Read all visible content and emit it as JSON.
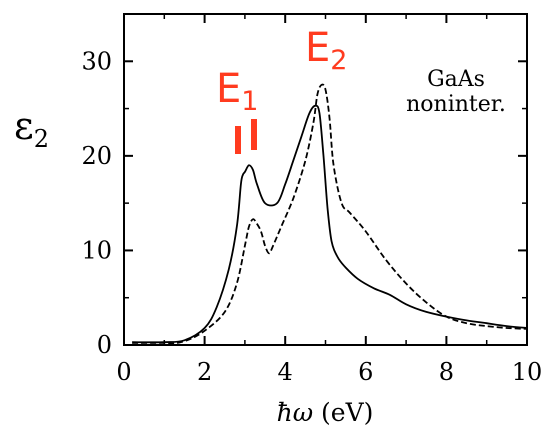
{
  "chart_data": {
    "type": "line",
    "xlabel_symbol": "ħω",
    "xlabel_unit": "(eV)",
    "ylabel_main": "ε",
    "ylabel_sub": "2",
    "xlim": [
      0,
      10
    ],
    "ylim": [
      0,
      35
    ],
    "xticks": [
      "0",
      "2",
      "4",
      "6",
      "8",
      "10"
    ],
    "yticks": [
      "0",
      "10",
      "20",
      "30"
    ],
    "grid": false,
    "annotations": {
      "e1_main": "E",
      "e1_sub": "1",
      "e2_main": "E",
      "e2_sub": "2",
      "material_line1": "GaAs",
      "material_line2": "noninter.",
      "color": "#ff3b1f"
    },
    "series": [
      {
        "style": "solid",
        "x": [
          0.2,
          1.0,
          1.5,
          2.0,
          2.3,
          2.6,
          2.8,
          2.9,
          2.95,
          3.0,
          3.1,
          3.2,
          3.3,
          3.5,
          3.8,
          4.0,
          4.2,
          4.4,
          4.6,
          4.75,
          4.85,
          4.95,
          5.05,
          5.15,
          5.3,
          5.5,
          5.8,
          6.2,
          6.6,
          7.0,
          7.5,
          8.0,
          8.5,
          9.0,
          9.5,
          10.0
        ],
        "y": [
          0.3,
          0.3,
          0.5,
          1.8,
          4.0,
          8.0,
          12.5,
          17.0,
          18.0,
          18.3,
          19.0,
          18.5,
          17.0,
          15.0,
          15.0,
          17.0,
          19.5,
          22.0,
          24.5,
          25.3,
          24.5,
          20.0,
          14.5,
          11.0,
          9.3,
          8.2,
          7.0,
          6.0,
          5.3,
          4.3,
          3.5,
          3.0,
          2.6,
          2.3,
          2.0,
          1.8
        ]
      },
      {
        "style": "dashed",
        "x": [
          0.2,
          1.0,
          1.5,
          2.0,
          2.5,
          2.8,
          3.0,
          3.1,
          3.2,
          3.3,
          3.4,
          3.5,
          3.6,
          3.7,
          3.9,
          4.2,
          4.5,
          4.7,
          4.8,
          4.9,
          5.0,
          5.1,
          5.2,
          5.4,
          5.6,
          6.0,
          6.5,
          7.0,
          7.5,
          8.0,
          8.5,
          9.0,
          9.5,
          10.0
        ],
        "y": [
          0.1,
          0.1,
          0.4,
          1.5,
          3.5,
          6.5,
          10.5,
          12.5,
          13.3,
          12.8,
          12.0,
          10.5,
          9.7,
          10.5,
          12.5,
          15.5,
          19.5,
          23.5,
          26.5,
          27.5,
          27.0,
          24.0,
          19.0,
          15.0,
          14.0,
          12.0,
          9.0,
          6.5,
          4.5,
          3.0,
          2.3,
          2.0,
          1.8,
          1.7
        ]
      }
    ]
  }
}
